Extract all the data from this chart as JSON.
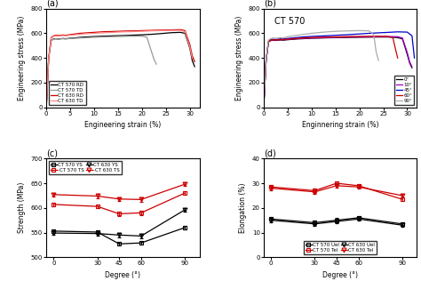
{
  "panel_a": {
    "title": "(a)",
    "xlabel": "Engineering strain (%)",
    "ylabel": "Engineering stress (MPa)",
    "ylim": [
      0,
      800
    ],
    "xlim": [
      0,
      32
    ],
    "yticks": [
      0,
      200,
      400,
      600,
      800
    ],
    "xticks": [
      0,
      5,
      10,
      15,
      20,
      25,
      30
    ],
    "curves": {
      "CT 570 RD": {
        "color": "#000000",
        "lw": 0.9,
        "x": [
          0,
          0.5,
          1,
          1.5,
          2,
          2.5,
          3,
          3.5,
          4,
          4.5,
          5,
          6,
          7,
          8,
          10,
          12,
          14,
          16,
          18,
          20,
          22,
          24,
          26,
          28,
          29,
          30,
          30.5,
          31
        ],
        "y": [
          0,
          400,
          540,
          555,
          556,
          554,
          556,
          558,
          556,
          558,
          560,
          563,
          567,
          570,
          574,
          577,
          580,
          582,
          585,
          588,
          592,
          598,
          605,
          608,
          600,
          480,
          380,
          330
        ]
      },
      "CT 570 TD": {
        "color": "#999999",
        "lw": 0.9,
        "x": [
          0,
          0.5,
          1,
          1.5,
          2,
          2.5,
          3,
          3.5,
          4,
          4.5,
          5,
          6,
          7,
          8,
          10,
          12,
          14,
          16,
          18,
          20,
          21,
          22,
          22.5,
          23
        ],
        "y": [
          0,
          400,
          540,
          553,
          555,
          553,
          555,
          556,
          554,
          556,
          558,
          560,
          562,
          564,
          568,
          571,
          573,
          575,
          577,
          577,
          570,
          450,
          390,
          350
        ]
      },
      "CT 630 RD": {
        "color": "#cc0000",
        "lw": 0.9,
        "x": [
          0,
          0.5,
          1,
          1.5,
          2,
          2.5,
          3,
          3.5,
          4,
          4.5,
          5,
          6,
          7,
          8,
          10,
          12,
          14,
          16,
          18,
          20,
          22,
          24,
          26,
          28,
          29,
          30,
          30.5,
          31
        ],
        "y": [
          0,
          400,
          565,
          580,
          585,
          582,
          584,
          587,
          584,
          587,
          590,
          595,
          600,
          603,
          608,
          613,
          615,
          618,
          620,
          622,
          624,
          626,
          628,
          630,
          622,
          510,
          420,
          370
        ]
      },
      "CT 630 TD": {
        "color": "#ff8888",
        "lw": 0.9,
        "x": [
          0,
          0.5,
          1,
          1.5,
          2,
          2.5,
          3,
          3.5,
          4,
          4.5,
          5,
          6,
          7,
          8,
          10,
          12,
          14,
          16,
          18,
          20,
          22,
          24,
          26,
          28,
          29,
          30,
          30.5
        ],
        "y": [
          0,
          400,
          560,
          575,
          580,
          577,
          580,
          582,
          580,
          582,
          585,
          588,
          592,
          596,
          600,
          605,
          608,
          612,
          614,
          617,
          620,
          622,
          624,
          624,
          614,
          490,
          400
        ]
      }
    },
    "legend_order": [
      "CT 570 RD",
      "CT 570 TD",
      "CT 630 RD",
      "CT 630 TD"
    ]
  },
  "panel_b": {
    "title": "(b)",
    "annotation": "CT 570",
    "xlabel": "Enginnering strain (%)",
    "ylabel": "Engineering stress (MPa)",
    "ylim": [
      0,
      800
    ],
    "xlim": [
      0,
      32
    ],
    "yticks": [
      0,
      200,
      400,
      600,
      800
    ],
    "xticks": [
      0,
      5,
      10,
      15,
      20,
      25,
      30
    ],
    "curves": {
      "0°": {
        "color": "#000000",
        "lw": 0.9,
        "x": [
          0,
          0.5,
          1,
          1.5,
          2,
          2.5,
          3,
          3.5,
          4,
          4.5,
          5,
          6,
          7,
          8,
          10,
          12,
          14,
          16,
          18,
          20,
          22,
          24,
          26,
          28,
          29,
          30,
          30.5,
          31
        ],
        "y": [
          0,
          380,
          530,
          542,
          544,
          542,
          544,
          546,
          544,
          546,
          548,
          551,
          554,
          556,
          560,
          562,
          564,
          565,
          567,
          568,
          569,
          570,
          570,
          565,
          555,
          430,
          360,
          320
        ]
      },
      "10°": {
        "color": "#aa00cc",
        "lw": 0.9,
        "x": [
          0,
          0.5,
          1,
          1.5,
          2,
          2.5,
          3,
          3.5,
          4,
          4.5,
          5,
          6,
          7,
          8,
          10,
          12,
          14,
          16,
          18,
          20,
          22,
          24,
          26,
          28,
          29,
          30,
          30.5,
          31
        ],
        "y": [
          0,
          380,
          532,
          545,
          547,
          545,
          547,
          549,
          547,
          549,
          551,
          554,
          557,
          559,
          562,
          564,
          566,
          568,
          570,
          571,
          572,
          573,
          574,
          573,
          563,
          445,
          370,
          330
        ]
      },
      "45°": {
        "color": "#0000cc",
        "lw": 0.9,
        "x": [
          0,
          0.5,
          1,
          1.5,
          2,
          2.5,
          3,
          3.5,
          4,
          4.5,
          5,
          6,
          7,
          8,
          10,
          12,
          14,
          16,
          18,
          20,
          22,
          24,
          26,
          28,
          30,
          31,
          31.5
        ],
        "y": [
          0,
          380,
          535,
          548,
          552,
          550,
          552,
          555,
          553,
          556,
          558,
          562,
          566,
          570,
          575,
          578,
          582,
          586,
          590,
          595,
          600,
          604,
          608,
          612,
          610,
          580,
          400
        ]
      },
      "60°": {
        "color": "#cc0000",
        "lw": 0.9,
        "x": [
          0,
          0.5,
          1,
          1.5,
          2,
          2.5,
          3,
          3.5,
          4,
          4.5,
          5,
          6,
          7,
          8,
          10,
          12,
          14,
          16,
          18,
          20,
          22,
          24,
          26,
          27,
          27.5,
          28
        ],
        "y": [
          0,
          380,
          532,
          545,
          548,
          546,
          548,
          550,
          548,
          551,
          553,
          556,
          559,
          562,
          566,
          568,
          570,
          572,
          574,
          575,
          576,
          577,
          575,
          565,
          480,
          400
        ]
      },
      "90°": {
        "color": "#aaaaaa",
        "lw": 0.9,
        "x": [
          0,
          0.5,
          1,
          1.5,
          2,
          2.5,
          3,
          3.5,
          4,
          4.5,
          5,
          6,
          7,
          8,
          10,
          12,
          14,
          16,
          18,
          20,
          22,
          23,
          23.5,
          24
        ],
        "y": [
          0,
          380,
          545,
          558,
          562,
          560,
          562,
          565,
          563,
          567,
          572,
          578,
          584,
          590,
          600,
          608,
          614,
          618,
          620,
          622,
          620,
          590,
          450,
          380
        ]
      }
    },
    "legend_order": [
      "0°",
      "10°",
      "45°",
      "60°",
      "90°"
    ]
  },
  "panel_c": {
    "title": "(c)",
    "xlabel": "Degree (°)",
    "ylabel": "Strength (MPa)",
    "ylim": [
      500,
      700
    ],
    "xlim": [
      -5,
      100
    ],
    "xticks": [
      0,
      30,
      45,
      60,
      90
    ],
    "yticks": [
      500,
      550,
      600,
      650,
      700
    ],
    "series": {
      "CT 570 YS": {
        "color": "#000000",
        "marker": "s",
        "x": [
          0,
          30,
          45,
          60,
          90
        ],
        "y": [
          553,
          551,
          527,
          529,
          560
        ],
        "yerr": [
          4,
          4,
          4,
          4,
          4
        ]
      },
      "CT 570 TS": {
        "color": "#cc0000",
        "marker": "s",
        "x": [
          0,
          30,
          45,
          60,
          90
        ],
        "y": [
          607,
          603,
          588,
          590,
          630
        ],
        "yerr": [
          4,
          4,
          4,
          4,
          4
        ]
      },
      "CT 630 YS": {
        "color": "#000000",
        "marker": "v",
        "x": [
          0,
          30,
          45,
          60,
          90
        ],
        "y": [
          549,
          548,
          545,
          543,
          596
        ],
        "yerr": [
          4,
          4,
          4,
          4,
          4
        ]
      },
      "CT 630 TS": {
        "color": "#cc0000",
        "marker": "v",
        "x": [
          0,
          30,
          45,
          60,
          90
        ],
        "y": [
          627,
          624,
          618,
          617,
          648
        ],
        "yerr": [
          4,
          4,
          4,
          4,
          4
        ]
      }
    },
    "legend_order": [
      "CT 570 YS",
      "CT 570 TS",
      "CT 630 YS",
      "CT 630 TS"
    ],
    "legend_labels": [
      "CT 570 YS",
      "CT 570 TS",
      "CT 630 YS",
      "CT 630 TS"
    ]
  },
  "panel_d": {
    "title": "(d)",
    "xlabel": "Degree (°)",
    "ylabel": "Elongation (%)",
    "ylim": [
      0,
      40
    ],
    "xlim": [
      -5,
      100
    ],
    "xticks": [
      0,
      30,
      45,
      60,
      90
    ],
    "yticks": [
      0,
      10,
      20,
      30,
      40
    ],
    "series": {
      "CT 570 Uel": {
        "color": "#000000",
        "marker": "s",
        "x": [
          0,
          30,
          45,
          60,
          90
        ],
        "y": [
          15.5,
          14.0,
          15.0,
          16.0,
          13.5
        ],
        "yerr": [
          0.8,
          0.8,
          0.8,
          0.8,
          0.8
        ]
      },
      "CT 570 Tel": {
        "color": "#cc0000",
        "marker": "s",
        "x": [
          0,
          30,
          45,
          60,
          90
        ],
        "y": [
          28.5,
          27.0,
          30.0,
          29.0,
          23.5
        ],
        "yerr": [
          0.8,
          0.8,
          0.8,
          0.8,
          0.8
        ]
      },
      "CT 630 Uel": {
        "color": "#000000",
        "marker": "v",
        "x": [
          0,
          30,
          45,
          60,
          90
        ],
        "y": [
          15.0,
          13.5,
          14.5,
          15.5,
          13.0
        ],
        "yerr": [
          0.8,
          0.8,
          0.8,
          0.8,
          0.8
        ]
      },
      "CT 630 Tel": {
        "color": "#cc0000",
        "marker": "v",
        "x": [
          0,
          30,
          45,
          60,
          90
        ],
        "y": [
          28.0,
          26.5,
          29.0,
          28.5,
          25.0
        ],
        "yerr": [
          0.8,
          0.8,
          0.8,
          0.8,
          0.8
        ]
      }
    },
    "legend_order": [
      "CT 570 Uel",
      "CT 570 Tel",
      "CT 630 Uel",
      "CT 630 Tel"
    ]
  }
}
